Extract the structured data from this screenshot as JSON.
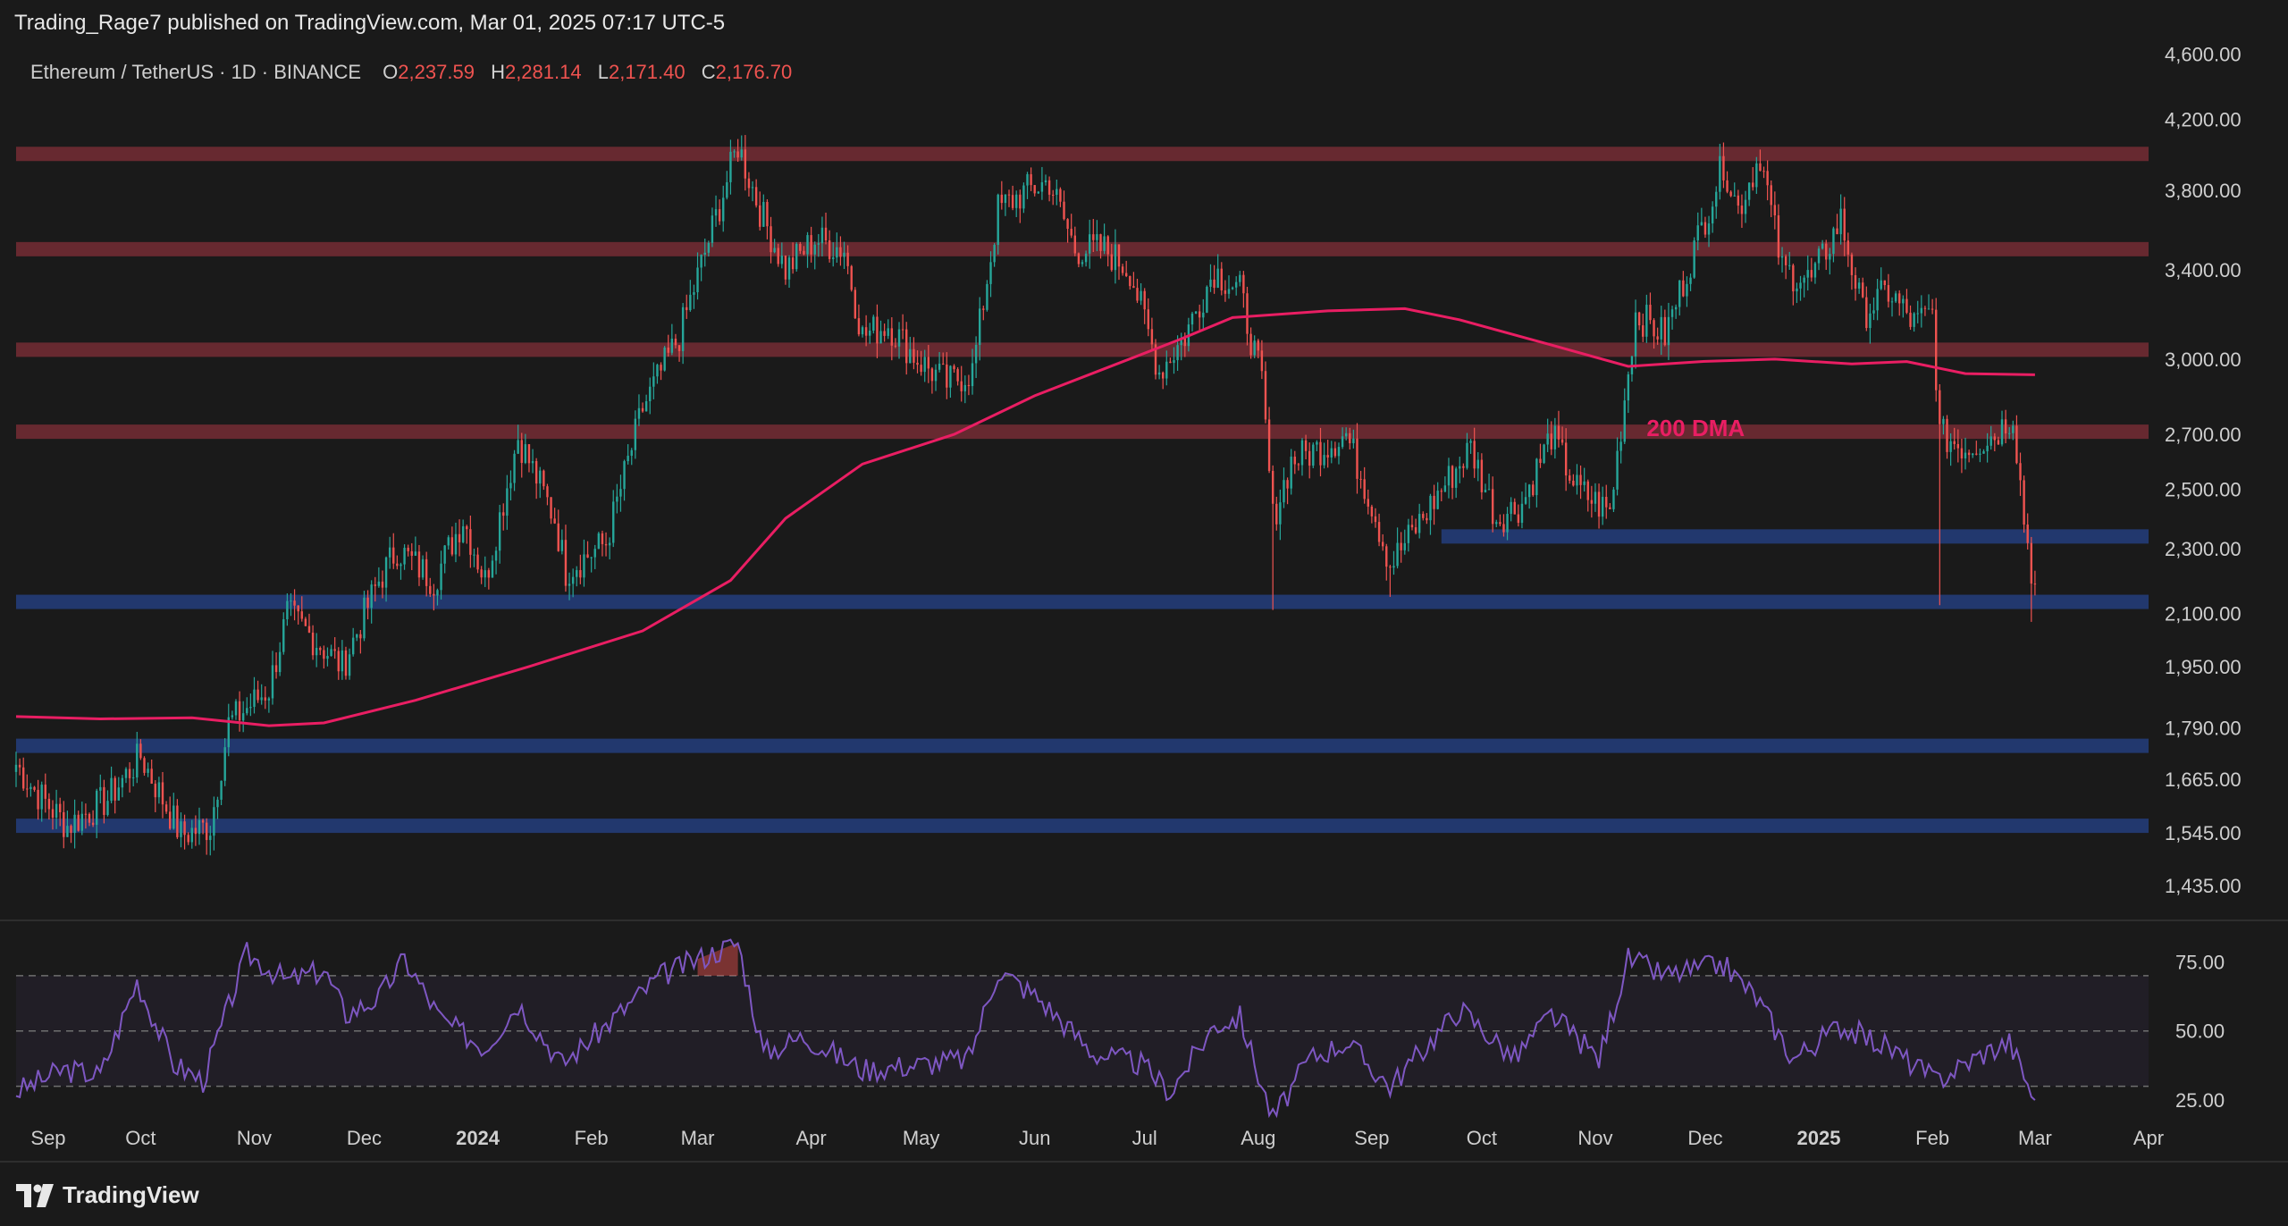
{
  "header": {
    "credit": "Trading_Rage7 published on TradingView.com, Mar 01, 2025 07:17 UTC-5"
  },
  "legend": {
    "symbol": "Ethereum / TetherUS · 1D · BINANCE",
    "open_label": "O",
    "open_value": "2,237.59",
    "high_label": "H",
    "high_value": "2,281.14",
    "low_label": "L",
    "low_value": "2,171.40",
    "close_label": "C",
    "close_value": "2,176.70"
  },
  "footer": {
    "brand": "TradingView",
    "logo_icon": "tradingview-logo-icon"
  },
  "colors": {
    "background": "#1a1a1a",
    "up_candle": "#26a69a",
    "down_candle": "#ef5350",
    "resistance_zone": "#6b2a31",
    "support_zone": "#233a73",
    "ma_line": "#e91e63",
    "rsi_line": "#7e57c2",
    "text": "#cfcfcf"
  },
  "chart_data": [
    {
      "type": "candlestick",
      "symbol": "ETHUSDT",
      "timeframe": "1D",
      "exchange": "BINANCE",
      "y_scale": "log",
      "ylim": [
        1380,
        4650
      ],
      "x_range": [
        "2023-08-28",
        "2025-04-01"
      ],
      "y_ticks": [
        4600,
        4200,
        3800,
        3400,
        3000,
        2700,
        2500,
        2300,
        2100,
        1950,
        1790,
        1665,
        1545,
        1435
      ],
      "y_tick_labels": [
        "4,600.00",
        "4,200.00",
        "3,800.00",
        "3,400.00",
        "3,000.00",
        "2,700.00",
        "2,500.00",
        "2,300.00",
        "2,100.00",
        "1,950.00",
        "1,790.00",
        "1,665.00",
        "1,545.00",
        "1,435.00"
      ],
      "x_ticks": [
        {
          "date": "2023-09-01",
          "label": "Sep"
        },
        {
          "date": "2023-10-01",
          "label": "Oct"
        },
        {
          "date": "2023-11-01",
          "label": "Nov"
        },
        {
          "date": "2023-12-01",
          "label": "Dec"
        },
        {
          "date": "2024-01-01",
          "label": "2024",
          "bold": true
        },
        {
          "date": "2024-02-01",
          "label": "Feb"
        },
        {
          "date": "2024-03-01",
          "label": "Mar"
        },
        {
          "date": "2024-04-01",
          "label": "Apr"
        },
        {
          "date": "2024-05-01",
          "label": "May"
        },
        {
          "date": "2024-06-01",
          "label": "Jun"
        },
        {
          "date": "2024-07-01",
          "label": "Jul"
        },
        {
          "date": "2024-08-01",
          "label": "Aug"
        },
        {
          "date": "2024-09-01",
          "label": "Sep"
        },
        {
          "date": "2024-10-01",
          "label": "Oct"
        },
        {
          "date": "2024-11-01",
          "label": "Nov"
        },
        {
          "date": "2024-12-01",
          "label": "Dec"
        },
        {
          "date": "2025-01-01",
          "label": "2025",
          "bold": true
        },
        {
          "date": "2025-02-01",
          "label": "Feb"
        },
        {
          "date": "2025-03-01",
          "label": "Mar"
        },
        {
          "date": "2025-04-01",
          "label": "Apr"
        }
      ],
      "price_path": [
        [
          "2023-08-28",
          1700
        ],
        [
          "2023-09-02",
          1640
        ],
        [
          "2023-09-11",
          1560
        ],
        [
          "2023-09-22",
          1620
        ],
        [
          "2023-10-01",
          1720
        ],
        [
          "2023-10-12",
          1540
        ],
        [
          "2023-10-20",
          1560
        ],
        [
          "2023-10-25",
          1800
        ],
        [
          "2023-11-05",
          1890
        ],
        [
          "2023-11-10",
          2100
        ],
        [
          "2023-11-20",
          2000
        ],
        [
          "2023-11-25",
          1950
        ],
        [
          "2023-12-05",
          2200
        ],
        [
          "2023-12-10",
          2300
        ],
        [
          "2023-12-20",
          2200
        ],
        [
          "2023-12-28",
          2400
        ],
        [
          "2024-01-03",
          2200
        ],
        [
          "2024-01-12",
          2690
        ],
        [
          "2024-01-22",
          2400
        ],
        [
          "2024-01-25",
          2230
        ],
        [
          "2024-02-05",
          2320
        ],
        [
          "2024-02-15",
          2800
        ],
        [
          "2024-02-25",
          3100
        ],
        [
          "2024-03-05",
          3600
        ],
        [
          "2024-03-12",
          4050
        ],
        [
          "2024-03-18",
          3700
        ],
        [
          "2024-03-25",
          3400
        ],
        [
          "2024-04-02",
          3550
        ],
        [
          "2024-04-10",
          3500
        ],
        [
          "2024-04-15",
          3100
        ],
        [
          "2024-04-22",
          3150
        ],
        [
          "2024-04-30",
          3000
        ],
        [
          "2024-05-08",
          2900
        ],
        [
          "2024-05-15",
          2950
        ],
        [
          "2024-05-22",
          3700
        ],
        [
          "2024-05-30",
          3800
        ],
        [
          "2024-06-05",
          3850
        ],
        [
          "2024-06-12",
          3500
        ],
        [
          "2024-06-20",
          3500
        ],
        [
          "2024-06-27",
          3400
        ],
        [
          "2024-07-05",
          2950
        ],
        [
          "2024-07-12",
          3100
        ],
        [
          "2024-07-20",
          3400
        ],
        [
          "2024-07-27",
          3300
        ],
        [
          "2024-08-02",
          2900
        ],
        [
          "2024-08-05",
          2400
        ],
        [
          "2024-08-10",
          2600
        ],
        [
          "2024-08-18",
          2650
        ],
        [
          "2024-08-25",
          2700
        ],
        [
          "2024-09-01",
          2450
        ],
        [
          "2024-09-06",
          2250
        ],
        [
          "2024-09-12",
          2350
        ],
        [
          "2024-09-20",
          2500
        ],
        [
          "2024-09-28",
          2650
        ],
        [
          "2024-10-05",
          2400
        ],
        [
          "2024-10-12",
          2450
        ],
        [
          "2024-10-20",
          2700
        ],
        [
          "2024-10-27",
          2500
        ],
        [
          "2024-11-05",
          2420
        ],
        [
          "2024-11-12",
          3200
        ],
        [
          "2024-11-20",
          3100
        ],
        [
          "2024-11-28",
          3500
        ],
        [
          "2024-12-06",
          3950
        ],
        [
          "2024-12-10",
          3700
        ],
        [
          "2024-12-16",
          4000
        ],
        [
          "2024-12-22",
          3400
        ],
        [
          "2024-12-30",
          3350
        ],
        [
          "2025-01-07",
          3650
        ],
        [
          "2025-01-13",
          3200
        ],
        [
          "2025-01-20",
          3300
        ],
        [
          "2025-01-27",
          3150
        ],
        [
          "2025-02-01",
          3200
        ],
        [
          "2025-02-03",
          2700
        ],
        [
          "2025-02-10",
          2650
        ],
        [
          "2025-02-18",
          2700
        ],
        [
          "2025-02-23",
          2780
        ],
        [
          "2025-02-26",
          2400
        ],
        [
          "2025-02-28",
          2237.59
        ],
        [
          "2025-03-01",
          2176.7
        ]
      ],
      "wicks": [
        {
          "date": "2024-08-05",
          "low": 2111
        },
        {
          "date": "2024-09-06",
          "low": 2150
        },
        {
          "date": "2025-02-03",
          "low": 2125
        },
        {
          "date": "2025-02-28",
          "low": 2076
        }
      ],
      "zones": [
        {
          "kind": "resistance",
          "price": 4000,
          "from": "2023-08-28",
          "to": "2025-04-01"
        },
        {
          "kind": "resistance",
          "price": 3500,
          "from": "2023-08-28",
          "to": "2025-04-01"
        },
        {
          "kind": "resistance",
          "price": 3040,
          "from": "2023-08-28",
          "to": "2025-04-01"
        },
        {
          "kind": "resistance",
          "price": 2710,
          "from": "2023-08-28",
          "to": "2025-04-01"
        },
        {
          "kind": "support",
          "price": 2340,
          "from": "2024-09-20",
          "to": "2025-04-01"
        },
        {
          "kind": "support",
          "price": 2135,
          "from": "2023-08-28",
          "to": "2025-04-01"
        },
        {
          "kind": "support",
          "price": 1745,
          "from": "2023-08-28",
          "to": "2025-04-01"
        },
        {
          "kind": "support",
          "price": 1560,
          "from": "2023-08-28",
          "to": "2025-04-01"
        }
      ],
      "moving_average": {
        "label": "200 DMA",
        "label_date": "2024-11-15",
        "label_price": 2720,
        "points": [
          [
            "2023-08-28",
            1818
          ],
          [
            "2023-09-20",
            1812
          ],
          [
            "2023-10-15",
            1815
          ],
          [
            "2023-11-05",
            1795
          ],
          [
            "2023-11-20",
            1802
          ],
          [
            "2023-12-15",
            1860
          ],
          [
            "2024-01-15",
            1950
          ],
          [
            "2024-02-15",
            2050
          ],
          [
            "2024-03-10",
            2200
          ],
          [
            "2024-03-25",
            2400
          ],
          [
            "2024-04-15",
            2590
          ],
          [
            "2024-05-10",
            2700
          ],
          [
            "2024-06-01",
            2850
          ],
          [
            "2024-06-20",
            2960
          ],
          [
            "2024-07-10",
            3080
          ],
          [
            "2024-07-25",
            3180
          ],
          [
            "2024-08-20",
            3210
          ],
          [
            "2024-09-10",
            3220
          ],
          [
            "2024-09-25",
            3170
          ],
          [
            "2024-10-20",
            3060
          ],
          [
            "2024-11-10",
            2970
          ],
          [
            "2024-11-30",
            2990
          ],
          [
            "2024-12-20",
            3000
          ],
          [
            "2025-01-10",
            2980
          ],
          [
            "2025-01-25",
            2990
          ],
          [
            "2025-02-10",
            2940
          ],
          [
            "2025-03-01",
            2935
          ]
        ]
      }
    },
    {
      "type": "line",
      "indicator": "RSI",
      "ylim": [
        15,
        90
      ],
      "y_ticks": [
        75,
        50,
        25
      ],
      "y_tick_labels": [
        "75.00",
        "50.00",
        "25.00"
      ],
      "band": [
        30,
        70
      ],
      "points": [
        [
          "2023-08-28",
          28
        ],
        [
          "2023-09-10",
          36
        ],
        [
          "2023-09-20",
          34
        ],
        [
          "2023-09-30",
          68
        ],
        [
          "2023-10-10",
          38
        ],
        [
          "2023-10-18",
          32
        ],
        [
          "2023-10-30",
          78
        ],
        [
          "2023-11-10",
          68
        ],
        [
          "2023-11-20",
          72
        ],
        [
          "2023-11-26",
          56
        ],
        [
          "2023-12-05",
          62
        ],
        [
          "2023-12-12",
          76
        ],
        [
          "2023-12-22",
          54
        ],
        [
          "2024-01-03",
          44
        ],
        [
          "2024-01-12",
          60
        ],
        [
          "2024-01-24",
          38
        ],
        [
          "2024-02-05",
          52
        ],
        [
          "2024-02-20",
          70
        ],
        [
          "2024-03-01",
          76
        ],
        [
          "2024-03-12",
          82
        ],
        [
          "2024-03-19",
          42
        ],
        [
          "2024-03-30",
          48
        ],
        [
          "2024-04-15",
          36
        ],
        [
          "2024-05-01",
          38
        ],
        [
          "2024-05-14",
          40
        ],
        [
          "2024-05-22",
          72
        ],
        [
          "2024-06-02",
          62
        ],
        [
          "2024-06-17",
          42
        ],
        [
          "2024-06-30",
          38
        ],
        [
          "2024-07-08",
          28
        ],
        [
          "2024-07-20",
          52
        ],
        [
          "2024-07-27",
          55
        ],
        [
          "2024-08-05",
          18
        ],
        [
          "2024-08-15",
          40
        ],
        [
          "2024-08-25",
          46
        ],
        [
          "2024-09-06",
          30
        ],
        [
          "2024-09-25",
          58
        ],
        [
          "2024-10-10",
          40
        ],
        [
          "2024-10-20",
          56
        ],
        [
          "2024-11-02",
          40
        ],
        [
          "2024-11-10",
          76
        ],
        [
          "2024-11-20",
          70
        ],
        [
          "2024-12-06",
          74
        ],
        [
          "2024-12-15",
          62
        ],
        [
          "2024-12-25",
          40
        ],
        [
          "2025-01-07",
          52
        ],
        [
          "2025-01-20",
          44
        ],
        [
          "2025-02-02",
          32
        ],
        [
          "2025-02-15",
          42
        ],
        [
          "2025-02-22",
          46
        ],
        [
          "2025-03-01",
          25
        ]
      ]
    }
  ]
}
